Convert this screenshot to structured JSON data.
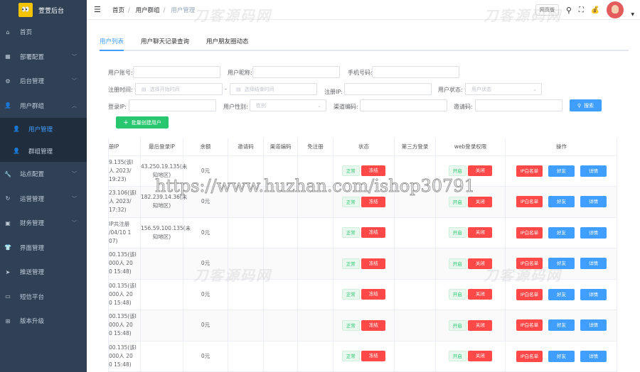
{
  "app": {
    "title": "萱萱后台",
    "logo_text": "OO"
  },
  "sidebar": {
    "items": [
      {
        "label": "首页",
        "icon": "home-icon"
      },
      {
        "label": "部署配置",
        "icon": "grid-icon",
        "chevron": "down"
      },
      {
        "label": "后台管理",
        "icon": "gear-icon",
        "chevron": "down"
      },
      {
        "label": "用户群组",
        "icon": "user-group-icon",
        "chevron": "up"
      },
      {
        "label": "站点配置",
        "icon": "wrench-icon",
        "chevron": "down"
      },
      {
        "label": "运营管理",
        "icon": "cycle-icon",
        "chevron": "down"
      },
      {
        "label": "财务管理",
        "icon": "wallet-icon",
        "chevron": "down"
      },
      {
        "label": "界面管理",
        "icon": "shirt-icon"
      },
      {
        "label": "推送管理",
        "icon": "send-icon"
      },
      {
        "label": "短信平台",
        "icon": "message-icon"
      },
      {
        "label": "版本升级",
        "icon": "upgrade-icon"
      }
    ],
    "sub_items": [
      {
        "label": "用户管理",
        "active": true
      },
      {
        "label": "群组管理"
      }
    ]
  },
  "header": {
    "breadcrumb": [
      "首页",
      "用户群组",
      "用户管理"
    ],
    "web_button": "网页版",
    "watermark": "刀客源码网"
  },
  "watermark_url": "https://www.huzhan.com/ishop30791",
  "tabs": [
    "用户列表",
    "用户聊天记录查询",
    "用户朋友圈动态"
  ],
  "form": {
    "account": "用户账号:",
    "nickname": "用户昵称:",
    "phone": "手机号码:",
    "reg_time": "注册时间:",
    "start_ph": "选择开始时间",
    "end_ph": "选择结束时间",
    "dash": "-",
    "reg_ip": "注册IP:",
    "status": "用户状态:",
    "status_ph": "用户状态",
    "login_ip": "登录IP:",
    "gender": "用户性别:",
    "gender_ph": "性别",
    "channel": "渠道编码:",
    "invite": "邀请码:",
    "search": "搜索",
    "batch_create": "批量创建用户"
  },
  "table": {
    "headers": [
      "册IP",
      "最后登录IP",
      "余额",
      "邀请码",
      "渠道编码",
      "免注册",
      "状态",
      "第三方登录",
      "web登录权限",
      "操作"
    ],
    "tags": {
      "normal": "正常",
      "freeze": "冻结",
      "on": "开启",
      "off": "关闭",
      "ip_whitelist": "IP白名单",
      "friends": "好友",
      "detail": "详情"
    },
    "rows": [
      {
        "reg_ip": "9.135(该I\n人 2023/\n19:23)",
        "last_ip": "43.250.19.135(未知地区)",
        "balance": "0元"
      },
      {
        "reg_ip": "23.106(该I\n人 2023/\n17:32)",
        "last_ip": "182.239.14.36(未知地区)",
        "balance": "0元"
      },
      {
        "reg_ip": "IP共注册\n/04/10 1\n07)",
        "last_ip": "156.59.100.135(未知地区)",
        "balance": "0元"
      },
      {
        "reg_ip": "00.135(该I\n000人 20\n0 15:48)",
        "last_ip": "",
        "balance": "0元"
      },
      {
        "reg_ip": "00.135(该I\n000人 20\n0 15:48)",
        "last_ip": "",
        "balance": "0元"
      },
      {
        "reg_ip": "00.135(该I\n000人 20\n0 15:48)",
        "last_ip": "",
        "balance": "0元"
      },
      {
        "reg_ip": "00.135(该I\n000人 20\n0 15:48)",
        "last_ip": "",
        "balance": "0元"
      }
    ]
  }
}
